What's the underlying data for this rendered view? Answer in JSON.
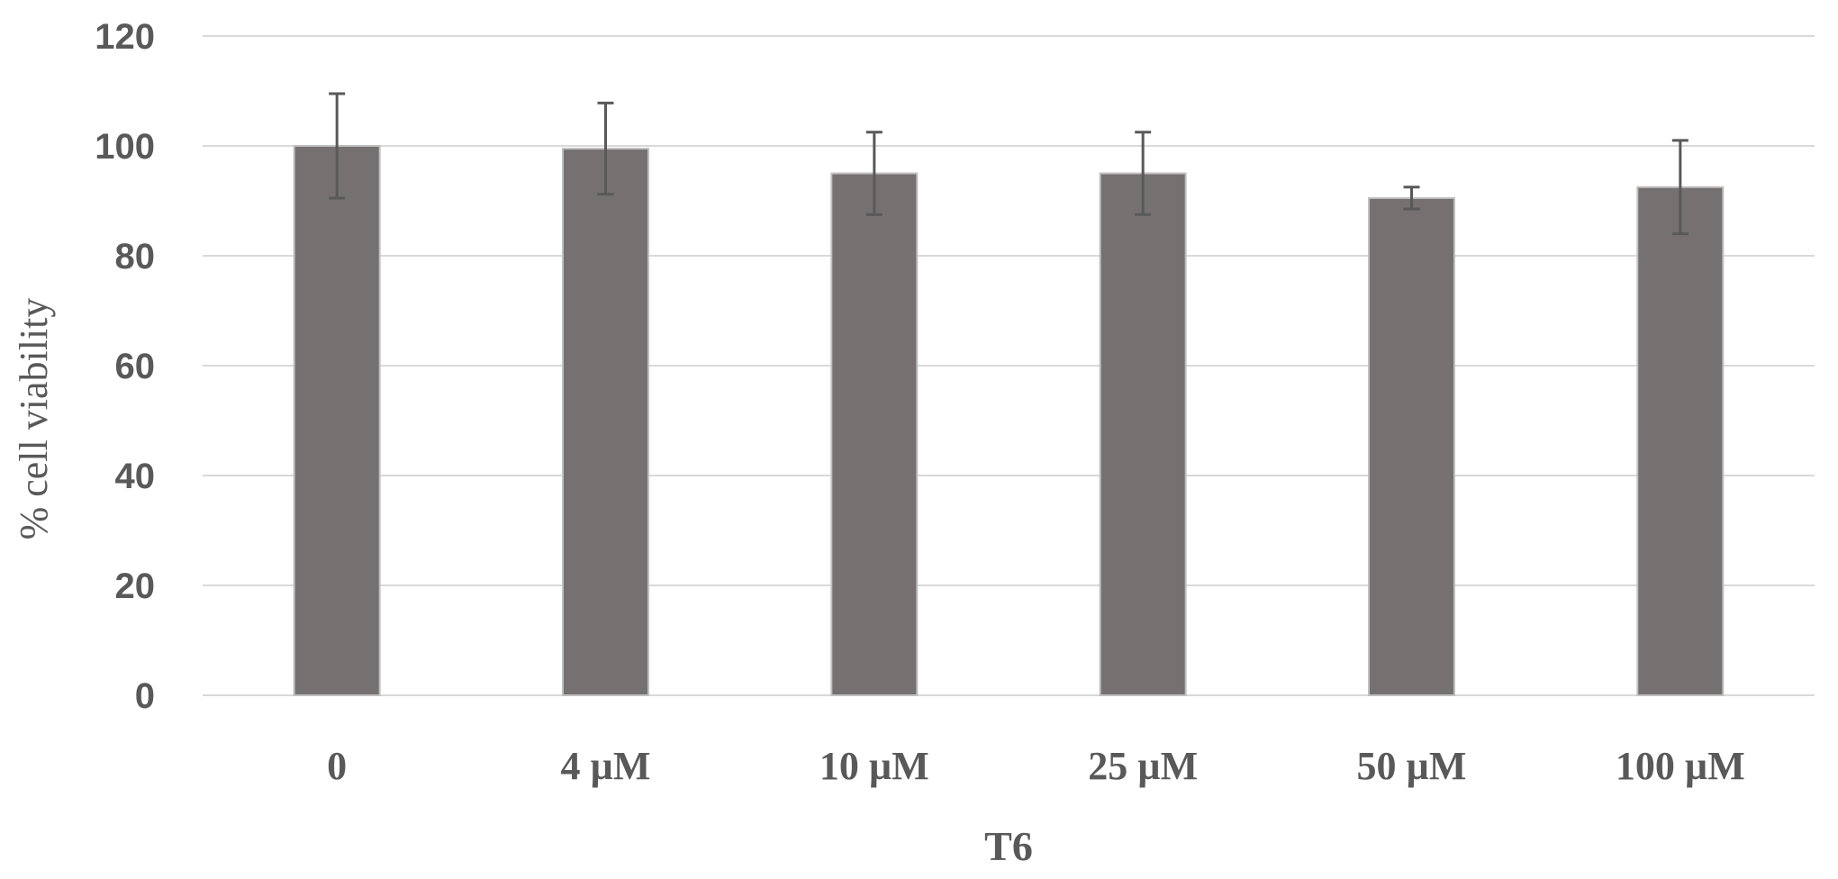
{
  "chart_data": {
    "type": "bar",
    "title": "",
    "xlabel": "T6",
    "ylabel": "% cell viability",
    "ylim": [
      0,
      120
    ],
    "yticks": [
      0,
      20,
      40,
      60,
      80,
      100,
      120
    ],
    "grid": true,
    "legend": "none",
    "bar_color": "#757170",
    "categories": [
      "0",
      "4 µM",
      "10 µM",
      "25 µM",
      "50 µM",
      "100 µM"
    ],
    "values": [
      100,
      99.5,
      95,
      95,
      90.5,
      92.5
    ],
    "errors": [
      9.5,
      8.3,
      7.5,
      7.5,
      2.0,
      8.5
    ]
  }
}
